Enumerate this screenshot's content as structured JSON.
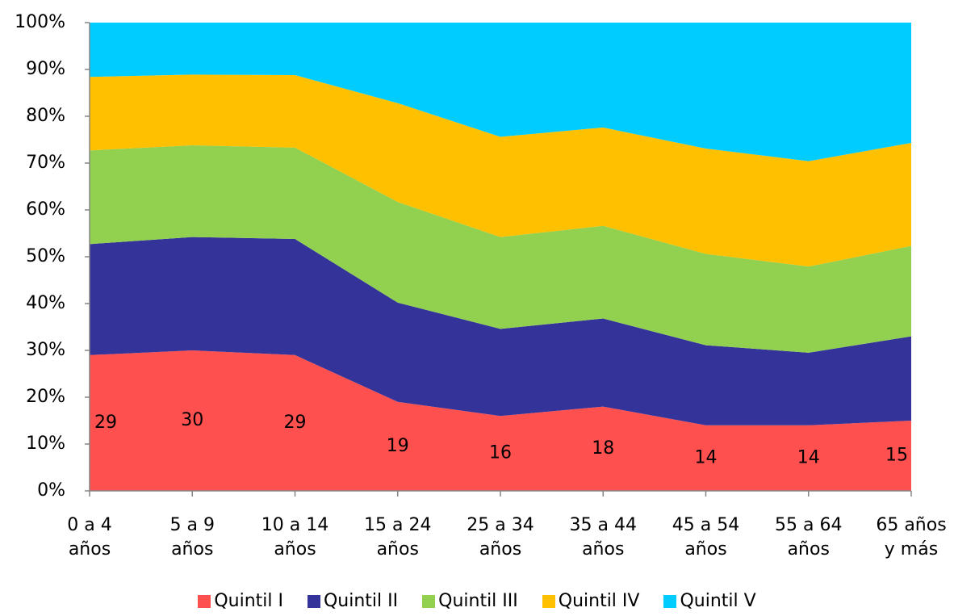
{
  "chart_data": {
    "type": "stacked_area",
    "categories": [
      "0 a 4\naños",
      "5 a 9\naños",
      "10 a 14\naños",
      "15 a 24\naños",
      "25 a 34\naños",
      "35 a 44\naños",
      "45 a 54\naños",
      "55 a 64\naños",
      "65 años\ny más"
    ],
    "series": [
      {
        "name": "Quintil I",
        "color": "#ff5050",
        "values": [
          29,
          30,
          29,
          19,
          16,
          18,
          14,
          14,
          15
        ]
      },
      {
        "name": "Quintil II",
        "color": "#333399",
        "values": [
          23.7,
          24.2,
          24.8,
          21.2,
          18.6,
          18.8,
          17.1,
          15.5,
          18.0
        ]
      },
      {
        "name": "Quintil III",
        "color": "#92d050",
        "values": [
          20.0,
          19.6,
          19.5,
          21.5,
          19.6,
          19.8,
          19.5,
          18.4,
          19.3
        ]
      },
      {
        "name": "Quintil IV",
        "color": "#ffc000",
        "values": [
          15.7,
          15.1,
          15.5,
          21.1,
          21.4,
          21.0,
          22.5,
          22.5,
          22.0
        ]
      },
      {
        "name": "Quintil V",
        "color": "#00ccff",
        "values": [
          11.6,
          11.1,
          11.2,
          17.2,
          24.4,
          22.4,
          26.9,
          29.6,
          25.7
        ]
      }
    ],
    "ylim": [
      0,
      100
    ],
    "yticks": [
      {
        "value": 0,
        "label": "0%"
      },
      {
        "value": 10,
        "label": "10%"
      },
      {
        "value": 20,
        "label": "20%"
      },
      {
        "value": 30,
        "label": "30%"
      },
      {
        "value": 40,
        "label": "40%"
      },
      {
        "value": 50,
        "label": "50%"
      },
      {
        "value": 60,
        "label": "60%"
      },
      {
        "value": 70,
        "label": "70%"
      },
      {
        "value": 80,
        "label": "80%"
      },
      {
        "value": 90,
        "label": "90%"
      },
      {
        "value": 100,
        "label": "100%"
      }
    ],
    "data_labels_series": 0,
    "legend": "bottom"
  }
}
